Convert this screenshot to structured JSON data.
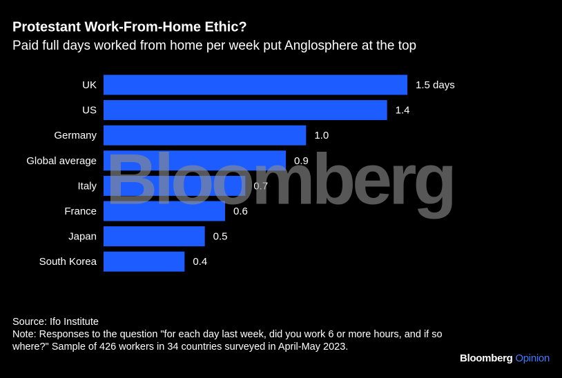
{
  "chart_data": {
    "type": "bar",
    "orientation": "horizontal",
    "title": "Protestant Work-From-Home Ethic?",
    "subtitle": "Paid full days worked from home per week put Anglosphere at the top",
    "categories": [
      "UK",
      "US",
      "Germany",
      "Global average",
      "Italy",
      "France",
      "Japan",
      "South Korea"
    ],
    "values": [
      1.5,
      1.4,
      1.0,
      0.9,
      0.7,
      0.6,
      0.5,
      0.4
    ],
    "value_labels": [
      "1.5 days",
      "1.4",
      "1.0",
      "0.9",
      "0.7",
      "0.6",
      "0.5",
      "0.4"
    ],
    "color": "#1d5cff",
    "watermark": "Bloomberg",
    "source": "Source: Ifo Institute",
    "note": "Note: Responses to the question \"for each day last week, did you work 6 or more hours, and if so where?\" Sample of 426 workers in 34 countries surveyed in April-May 2023.",
    "brand": "Bloomberg",
    "brand_suffix": "Opinion"
  }
}
